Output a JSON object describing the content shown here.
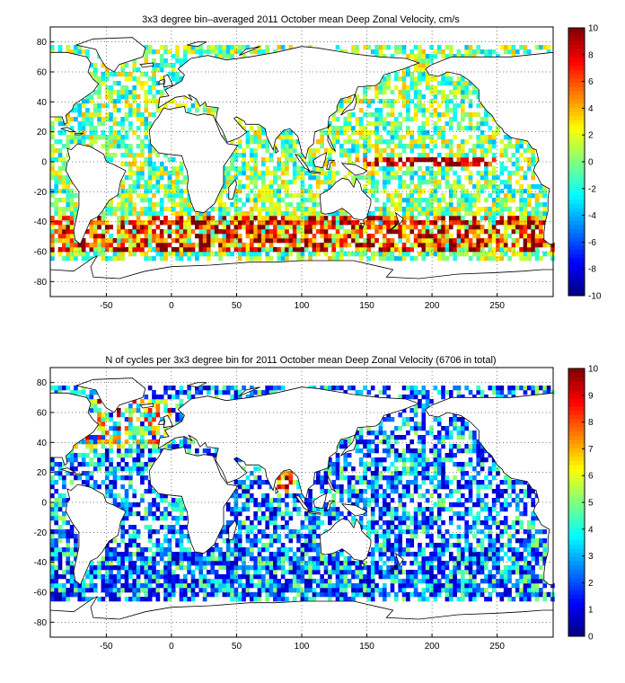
{
  "chart_data": [
    {
      "type": "heatmap",
      "title": "3x3 degree bin–averaged 2011 October mean Deep Zonal Velocity, cm/s",
      "xlim": [
        -93,
        293
      ],
      "ylim": [
        -90,
        90
      ],
      "xticks": [
        -50,
        0,
        50,
        100,
        150,
        200,
        250
      ],
      "xtick_labels": [
        "-50",
        "0",
        "50",
        "100",
        "150",
        "200",
        "250"
      ],
      "yticks": [
        80,
        60,
        40,
        20,
        0,
        -20,
        -40,
        -60,
        -80
      ],
      "ytick_labels": [
        "80",
        "60",
        "40",
        "20",
        "0",
        "-20",
        "-40",
        "-60",
        "-80"
      ],
      "bin_size_deg": 3,
      "grid": "dotted",
      "colormap": "jet",
      "colorbar": {
        "range": [
          -10,
          10
        ],
        "ticks": [
          10,
          8,
          6,
          4,
          2,
          0,
          -2,
          -4,
          -6,
          -8,
          -10
        ],
        "tick_labels": [
          "10",
          "8",
          "6",
          "4",
          "2",
          "0",
          "-2",
          "-4",
          "-6",
          "-8",
          "-10"
        ]
      },
      "seed": 7
    },
    {
      "type": "heatmap",
      "title": "N of cycles per 3x3 degree bin for 2011 October mean Deep Zonal Velocity (6706 in total)",
      "xlim": [
        -93,
        293
      ],
      "ylim": [
        -90,
        90
      ],
      "xticks": [
        -50,
        0,
        50,
        100,
        150,
        200,
        250
      ],
      "xtick_labels": [
        "-50",
        "0",
        "50",
        "100",
        "150",
        "200",
        "250"
      ],
      "yticks": [
        80,
        60,
        40,
        20,
        0,
        -20,
        -40,
        -60,
        -80
      ],
      "ytick_labels": [
        "80",
        "60",
        "40",
        "20",
        "0",
        "-20",
        "-40",
        "-60",
        "-80"
      ],
      "bin_size_deg": 3,
      "grid": "dotted",
      "colormap": "jet",
      "colorbar": {
        "range": [
          0,
          10
        ],
        "ticks": [
          10,
          9,
          8,
          7,
          6,
          5,
          4,
          3,
          2,
          1,
          0
        ],
        "tick_labels": [
          "10",
          "9",
          "8",
          "7",
          "6",
          "5",
          "4",
          "3",
          "2",
          "1",
          "0"
        ]
      },
      "seed": 13
    }
  ]
}
